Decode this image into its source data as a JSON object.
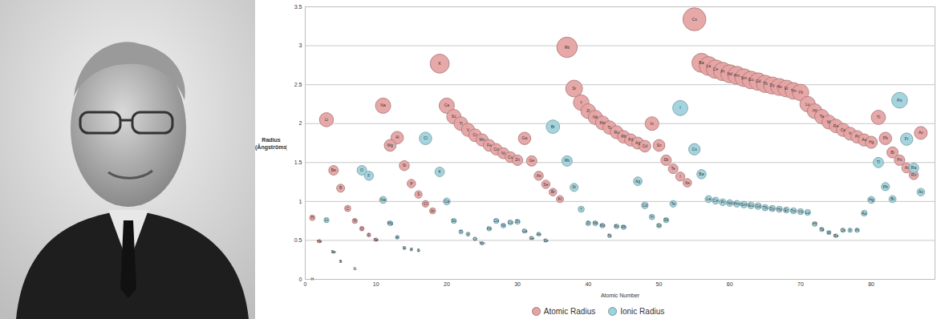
{
  "chart_data": {
    "type": "bubble",
    "xlabel": "Atomic Number",
    "ylabel": "Radius (Ångströms)",
    "xlim": [
      0,
      89
    ],
    "xticks": [
      0,
      10,
      20,
      30,
      40,
      50,
      60,
      70,
      80
    ],
    "ylim": [
      0,
      3.5
    ],
    "yticks": [
      0,
      0.5,
      1,
      1.5,
      2,
      2.5,
      3,
      3.5
    ],
    "grid": true,
    "legend": "bottom",
    "series": [
      {
        "name": "Atomic Radius",
        "color": "#e6a3a3",
        "x": [
          1,
          2,
          3,
          4,
          5,
          6,
          7,
          8,
          9,
          10,
          11,
          12,
          13,
          14,
          15,
          16,
          17,
          18,
          19,
          20,
          21,
          22,
          23,
          24,
          25,
          26,
          27,
          28,
          29,
          30,
          31,
          32,
          33,
          34,
          35,
          36,
          37,
          38,
          39,
          40,
          41,
          42,
          43,
          44,
          45,
          46,
          47,
          48,
          49,
          50,
          51,
          52,
          53,
          54,
          55,
          56,
          57,
          58,
          59,
          60,
          61,
          62,
          63,
          64,
          65,
          66,
          67,
          68,
          69,
          70,
          71,
          72,
          73,
          74,
          75,
          76,
          77,
          78,
          79,
          80,
          81,
          82,
          83,
          84,
          85,
          86,
          87
        ],
        "labels": [
          "H",
          "He",
          "Li",
          "Be",
          "B",
          "C",
          "N",
          "O",
          "F",
          "Ne",
          "Na",
          "Mg",
          "Al",
          "Si",
          "P",
          "S",
          "Cl",
          "Ar",
          "K",
          "Ca",
          "Sc",
          "Ti",
          "V",
          "Cr",
          "Mn",
          "Fe",
          "Co",
          "Ni",
          "Cu",
          "Zn",
          "Ga",
          "Ge",
          "As",
          "Se",
          "Br",
          "Kr",
          "Rb",
          "Sr",
          "Y",
          "Zr",
          "Nb",
          "Mo",
          "Tc",
          "Ru",
          "Rh",
          "Pd",
          "Ag",
          "Cd",
          "In",
          "Sn",
          "Sb",
          "Te",
          "I",
          "Xe",
          "Cs",
          "Ba",
          "La",
          "Ce",
          "Pr",
          "Nd",
          "Pm",
          "Sm",
          "Eu",
          "Gd",
          "Tb",
          "Dy",
          "Ho",
          "Er",
          "Tm",
          "Yb",
          "Lu",
          "Hf",
          "Ta",
          "W",
          "Re",
          "Os",
          "Ir",
          "Pt",
          "Au",
          "Hg",
          "Tl",
          "Pb",
          "Bi",
          "Po",
          "At",
          "Rn",
          "Ac"
        ],
        "values": [
          0.79,
          0.49,
          2.05,
          1.4,
          1.17,
          0.91,
          0.75,
          0.65,
          0.57,
          0.51,
          2.23,
          1.72,
          1.82,
          1.46,
          1.23,
          1.09,
          0.97,
          0.88,
          2.77,
          2.23,
          2.09,
          2.0,
          1.92,
          1.85,
          1.79,
          1.72,
          1.67,
          1.62,
          1.57,
          1.53,
          1.81,
          1.52,
          1.33,
          1.22,
          1.12,
          1.03,
          2.98,
          2.45,
          2.27,
          2.16,
          2.08,
          2.01,
          1.95,
          1.89,
          1.83,
          1.79,
          1.75,
          1.71,
          2.0,
          1.72,
          1.53,
          1.42,
          1.32,
          1.24,
          3.34,
          2.78,
          2.74,
          2.7,
          2.67,
          2.64,
          2.62,
          2.59,
          2.56,
          2.54,
          2.51,
          2.49,
          2.47,
          2.45,
          2.42,
          2.4,
          2.25,
          2.16,
          2.09,
          2.02,
          1.97,
          1.92,
          1.87,
          1.83,
          1.79,
          1.76,
          2.08,
          1.81,
          1.63,
          1.53,
          1.43,
          1.34,
          1.88
        ]
      },
      {
        "name": "Ionic Radius",
        "color": "#9fd3dc",
        "x": [
          1,
          3,
          4,
          5,
          7,
          8,
          9,
          11,
          12,
          13,
          14,
          15,
          16,
          17,
          19,
          20,
          21,
          22,
          23,
          24,
          25,
          26,
          27,
          28,
          29,
          30,
          31,
          32,
          33,
          34,
          35,
          37,
          38,
          39,
          40,
          41,
          42,
          43,
          44,
          45,
          47,
          48,
          49,
          50,
          51,
          52,
          53,
          55,
          56,
          57,
          58,
          59,
          60,
          61,
          62,
          63,
          64,
          65,
          66,
          67,
          68,
          69,
          70,
          71,
          72,
          73,
          74,
          75,
          76,
          77,
          78,
          79,
          80,
          81,
          82,
          83,
          84,
          85,
          86,
          87
        ],
        "labels": [
          "H",
          "Li",
          "Be",
          "B",
          "N",
          "O",
          "F",
          "Na",
          "Mg",
          "Al",
          "Si",
          "P",
          "S",
          "Cl",
          "K",
          "Ca",
          "Sc",
          "Ti",
          "V",
          "Cr",
          "Mn",
          "Fe",
          "Co",
          "Ni",
          "Cu",
          "Zn",
          "Ga",
          "Ge",
          "As",
          "Se",
          "Br",
          "Rb",
          "Sr",
          "Y",
          "Zr",
          "Nb",
          "Mo",
          "Tc",
          "Ru",
          "Rh",
          "Ag",
          "Cd",
          "In",
          "Sn",
          "Sb",
          "Te",
          "I",
          "Cs",
          "Ba",
          "La",
          "Ce",
          "Pr",
          "Nd",
          "Pm",
          "Sm",
          "Eu",
          "Gd",
          "Tb",
          "Dy",
          "Ho",
          "Er",
          "Tm",
          "Yb",
          "Lu",
          "Hf",
          "Ta",
          "W",
          "Re",
          "Os",
          "Ir",
          "Pt",
          "Au",
          "Hg",
          "Tl",
          "Pb",
          "Bi",
          "Po",
          "Fr",
          "Ra",
          "Ac"
        ],
        "values": [
          0,
          0.76,
          0.35,
          0.23,
          0.13,
          1.4,
          1.33,
          1.02,
          0.72,
          0.54,
          0.4,
          0.38,
          0.37,
          1.81,
          1.38,
          1.0,
          0.75,
          0.61,
          0.58,
          0.52,
          0.46,
          0.65,
          0.75,
          0.69,
          0.73,
          0.74,
          0.62,
          0.53,
          0.58,
          0.5,
          1.96,
          1.52,
          1.18,
          0.9,
          0.72,
          0.72,
          0.69,
          0.56,
          0.68,
          0.67,
          1.26,
          0.95,
          0.8,
          0.69,
          0.76,
          0.97,
          2.2,
          1.67,
          1.35,
          1.03,
          1.01,
          0.99,
          0.98,
          0.97,
          0.96,
          0.95,
          0.94,
          0.92,
          0.91,
          0.9,
          0.89,
          0.88,
          0.87,
          0.86,
          0.71,
          0.64,
          0.6,
          0.56,
          0.63,
          0.63,
          0.63,
          0.85,
          1.02,
          1.5,
          1.19,
          1.03,
          2.3,
          1.8,
          1.43,
          1.12
        ]
      }
    ]
  }
}
